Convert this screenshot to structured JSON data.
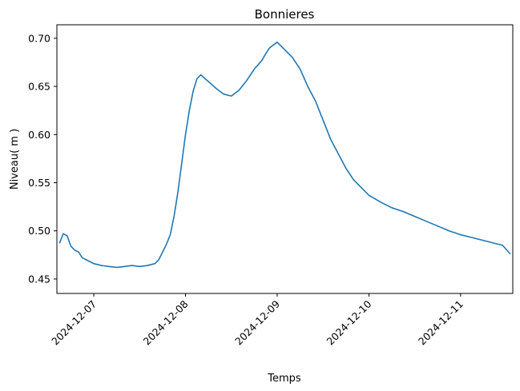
{
  "chart_data": {
    "type": "line",
    "title": "Bonnieres",
    "xlabel": "Temps",
    "ylabel": "Niveau( m )",
    "grid": false,
    "color": "#1f77b4",
    "x_ticks": [
      "2024-12-07",
      "2024-12-08",
      "2024-12-09",
      "2024-12-10",
      "2024-12-11"
    ],
    "y_ticks": [
      0.45,
      0.5,
      0.55,
      0.6,
      0.65,
      0.7
    ],
    "xlim": [
      "2024-12-06 14:20",
      "2024-12-11 13:40"
    ],
    "ylim": [
      0.435,
      0.714
    ],
    "series": [
      {
        "x": [
          "2024-12-06 15:00",
          "2024-12-06 16:00",
          "2024-12-06 17:00",
          "2024-12-06 18:00",
          "2024-12-06 19:00",
          "2024-12-06 20:00",
          "2024-12-06 21:00",
          "2024-12-06 22:00",
          "2024-12-06 23:00",
          "2024-12-07 00:00",
          "2024-12-07 02:00",
          "2024-12-07 04:00",
          "2024-12-07 06:00",
          "2024-12-07 08:00",
          "2024-12-07 10:00",
          "2024-12-07 12:00",
          "2024-12-07 14:00",
          "2024-12-07 16:00",
          "2024-12-07 17:00",
          "2024-12-07 18:00",
          "2024-12-07 19:00",
          "2024-12-07 20:00",
          "2024-12-07 21:00",
          "2024-12-07 22:00",
          "2024-12-07 23:00",
          "2024-12-08 00:00",
          "2024-12-08 01:00",
          "2024-12-08 02:00",
          "2024-12-08 03:00",
          "2024-12-08 04:00",
          "2024-12-08 06:00",
          "2024-12-08 08:00",
          "2024-12-08 10:00",
          "2024-12-08 12:00",
          "2024-12-08 14:00",
          "2024-12-08 16:00",
          "2024-12-08 18:00",
          "2024-12-08 20:00",
          "2024-12-08 21:00",
          "2024-12-08 22:00",
          "2024-12-09 00:00",
          "2024-12-09 02:00",
          "2024-12-09 04:00",
          "2024-12-09 06:00",
          "2024-12-09 08:00",
          "2024-12-09 10:00",
          "2024-12-09 12:00",
          "2024-12-09 14:00",
          "2024-12-09 16:00",
          "2024-12-09 18:00",
          "2024-12-09 20:00",
          "2024-12-09 22:00",
          "2024-12-10 00:00",
          "2024-12-10 03:00",
          "2024-12-10 06:00",
          "2024-12-10 09:00",
          "2024-12-10 12:00",
          "2024-12-10 15:00",
          "2024-12-10 18:00",
          "2024-12-10 21:00",
          "2024-12-11 00:00",
          "2024-12-11 03:00",
          "2024-12-11 06:00",
          "2024-12-11 09:00",
          "2024-12-11 11:00",
          "2024-12-11 13:00"
        ],
        "y": [
          0.487,
          0.497,
          0.495,
          0.484,
          0.48,
          0.478,
          0.472,
          0.47,
          0.468,
          0.466,
          0.464,
          0.463,
          0.462,
          0.463,
          0.464,
          0.463,
          0.464,
          0.466,
          0.47,
          0.478,
          0.486,
          0.496,
          0.515,
          0.54,
          0.57,
          0.6,
          0.625,
          0.645,
          0.658,
          0.662,
          0.655,
          0.648,
          0.642,
          0.64,
          0.646,
          0.656,
          0.668,
          0.677,
          0.684,
          0.69,
          0.696,
          0.688,
          0.68,
          0.668,
          0.65,
          0.635,
          0.615,
          0.595,
          0.58,
          0.565,
          0.553,
          0.545,
          0.537,
          0.53,
          0.524,
          0.52,
          0.515,
          0.51,
          0.505,
          0.5,
          0.496,
          0.493,
          0.49,
          0.487,
          0.485,
          0.476
        ]
      }
    ]
  }
}
